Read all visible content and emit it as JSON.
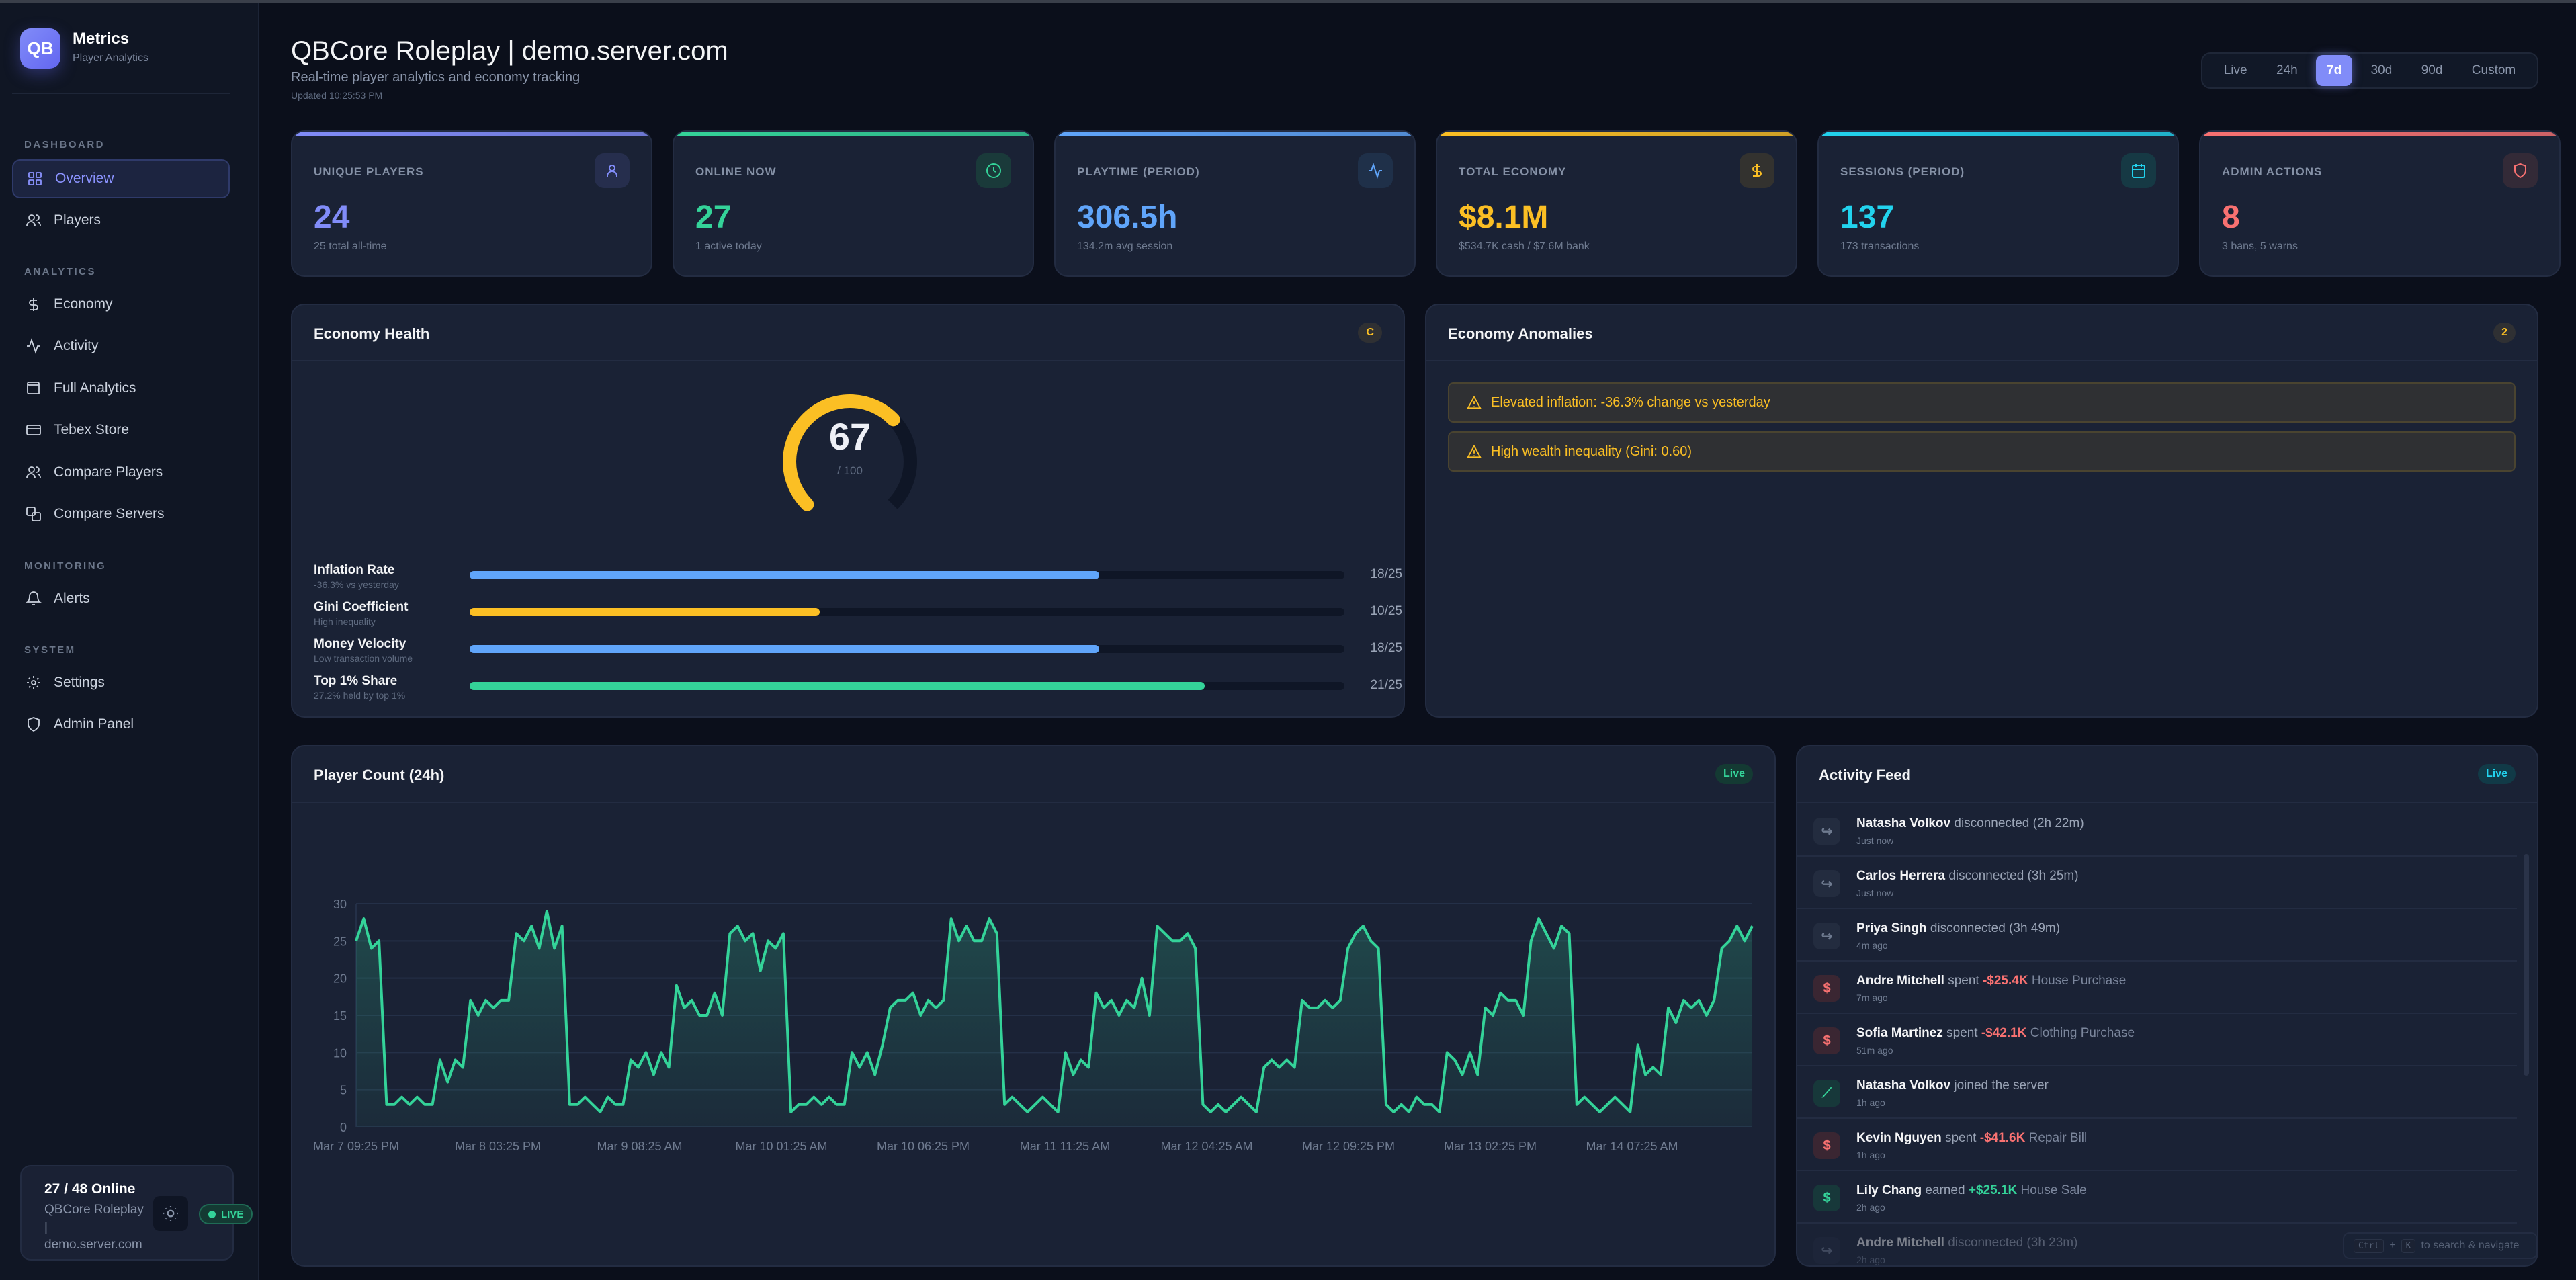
{
  "sidebar": {
    "logo": "QB",
    "brand": "Metrics",
    "brand_sub": "Player Analytics",
    "sections": [
      {
        "label": "DASHBOARD",
        "items": [
          {
            "label": "Overview",
            "icon": "grid-icon",
            "active": true
          },
          {
            "label": "Players",
            "icon": "users-icon"
          }
        ]
      },
      {
        "label": "ANALYTICS",
        "items": [
          {
            "label": "Economy",
            "icon": "dollar-icon"
          },
          {
            "label": "Activity",
            "icon": "activity-icon"
          },
          {
            "label": "Full Analytics",
            "icon": "wallet-icon"
          },
          {
            "label": "Tebex Store",
            "icon": "card-icon"
          },
          {
            "label": "Compare Players",
            "icon": "users-icon"
          },
          {
            "label": "Compare Servers",
            "icon": "servers-icon"
          }
        ]
      },
      {
        "label": "MONITORING",
        "items": [
          {
            "label": "Alerts",
            "icon": "bell-icon"
          }
        ]
      },
      {
        "label": "SYSTEM",
        "items": [
          {
            "label": "Settings",
            "icon": "gear-icon"
          },
          {
            "label": "Admin Panel",
            "icon": "shield-icon"
          }
        ]
      }
    ],
    "status": {
      "online": "27 / 48 Online",
      "server_line1": "QBCore Roleplay",
      "server_sep": "|",
      "server_line2": "demo.server.com",
      "live": "LIVE"
    }
  },
  "header": {
    "title": "QBCore Roleplay | demo.server.com",
    "subtitle": "Real-time player analytics and economy tracking",
    "updated": "Updated 10:25:53 PM",
    "ranges": [
      "Live",
      "24h",
      "7d",
      "30d",
      "90d",
      "Custom"
    ],
    "selected_range": "7d"
  },
  "stats": [
    {
      "label": "UNIQUE PLAYERS",
      "value": "24",
      "sub": "25 total all-time",
      "color": "#818cf8",
      "icon": "user-icon"
    },
    {
      "label": "ONLINE NOW",
      "value": "27",
      "sub": "1 active today",
      "color": "#34d399",
      "icon": "clock-icon"
    },
    {
      "label": "PLAYTIME (PERIOD)",
      "value": "306.5h",
      "sub": "134.2m avg session",
      "color": "#60a5fa",
      "icon": "activity-icon"
    },
    {
      "label": "TOTAL ECONOMY",
      "value": "$8.1M",
      "sub": "$534.7K cash / $7.6M bank",
      "color": "#fbbf24",
      "icon": "dollar-icon"
    },
    {
      "label": "SESSIONS (PERIOD)",
      "value": "137",
      "sub": "173 transactions",
      "color": "#22d3ee",
      "icon": "calendar-icon"
    },
    {
      "label": "ADMIN ACTIONS",
      "value": "8",
      "sub": "3 bans, 5 warns",
      "color": "#f87171",
      "icon": "shield-icon"
    }
  ],
  "economy_health": {
    "title": "Economy Health",
    "grade": "C",
    "score": "67",
    "score_max": "/ 100",
    "score_value": 67,
    "metrics": [
      {
        "name": "Inflation Rate",
        "desc": "-36.3% vs yesterday",
        "score": 18,
        "max": 25,
        "label": "18/25",
        "color": "#60a5fa"
      },
      {
        "name": "Gini Coefficient",
        "desc": "High inequality",
        "score": 10,
        "max": 25,
        "label": "10/25",
        "color": "#fbbf24"
      },
      {
        "name": "Money Velocity",
        "desc": "Low transaction volume",
        "score": 18,
        "max": 25,
        "label": "18/25",
        "color": "#60a5fa"
      },
      {
        "name": "Top 1% Share",
        "desc": "27.2% held by top 1%",
        "score": 21,
        "max": 25,
        "label": "21/25",
        "color": "#34d399"
      }
    ]
  },
  "anomalies": {
    "title": "Economy Anomalies",
    "count": "2",
    "items": [
      "Elevated inflation: -36.3% change vs yesterday",
      "High wealth inequality (Gini: 0.60)"
    ]
  },
  "player_count": {
    "title": "Player Count (24h)",
    "badge": "Live"
  },
  "chart_data": {
    "type": "area",
    "title": "Player Count (24h)",
    "xlabel": "",
    "ylabel": "",
    "ylim": [
      0,
      30
    ],
    "grid": true,
    "color": "#34d399",
    "yticks": [
      0,
      5,
      10,
      15,
      20,
      25,
      30
    ],
    "xticks": [
      "Mar 7 09:25 PM",
      "Mar 8 03:25 PM",
      "Mar 9 08:25 AM",
      "Mar 10 01:25 AM",
      "Mar 10 06:25 PM",
      "Mar 11 11:25 AM",
      "Mar 12 04:25 AM",
      "Mar 12 09:25 PM",
      "Mar 13 02:25 PM",
      "Mar 14 07:25 AM"
    ],
    "values": [
      25,
      28,
      24,
      25,
      3,
      3,
      4,
      3,
      4,
      3,
      3,
      9,
      6,
      9,
      8,
      17,
      15,
      17,
      16,
      17,
      17,
      26,
      25,
      27,
      24,
      29,
      24,
      27,
      3,
      3,
      4,
      3,
      2,
      4,
      3,
      3,
      9,
      8,
      10,
      7,
      10,
      8,
      19,
      16,
      17,
      15,
      15,
      18,
      15,
      26,
      27,
      25,
      26,
      21,
      25,
      24,
      26,
      2,
      3,
      3,
      4,
      3,
      4,
      3,
      3,
      10,
      8,
      10,
      7,
      11,
      16,
      17,
      17,
      18,
      15,
      17,
      16,
      17,
      28,
      25,
      27,
      25,
      25,
      28,
      26,
      3,
      4,
      3,
      2,
      3,
      4,
      3,
      2,
      10,
      7,
      9,
      8,
      18,
      16,
      17,
      15,
      17,
      16,
      20,
      15,
      27,
      26,
      25,
      25,
      26,
      24,
      3,
      2,
      3,
      2,
      3,
      4,
      3,
      2,
      8,
      9,
      8,
      9,
      8,
      17,
      16,
      16,
      17,
      16,
      17,
      24,
      26,
      27,
      25,
      24,
      3,
      2,
      3,
      2,
      4,
      3,
      3,
      2,
      10,
      9,
      7,
      10,
      7,
      16,
      15,
      18,
      17,
      17,
      15,
      25,
      28,
      26,
      24,
      27,
      26,
      3,
      4,
      3,
      2,
      3,
      4,
      3,
      2,
      11,
      7,
      8,
      7,
      16,
      14,
      17,
      16,
      17,
      15,
      17,
      24,
      25,
      27,
      25,
      27
    ]
  },
  "activity_feed": {
    "title": "Activity Feed",
    "badge": "Live",
    "items": [
      {
        "name": "Natasha Volkov",
        "action": "disconnected (2h 22m)",
        "amount": "",
        "detail": "",
        "time": "Just now",
        "kind": "logout"
      },
      {
        "name": "Carlos Herrera",
        "action": "disconnected (3h 25m)",
        "amount": "",
        "detail": "",
        "time": "Just now",
        "kind": "logout"
      },
      {
        "name": "Priya Singh",
        "action": "disconnected (3h 49m)",
        "amount": "",
        "detail": "",
        "time": "4m ago",
        "kind": "logout"
      },
      {
        "name": "Andre Mitchell",
        "action": "spent",
        "amount": "-$25.4K",
        "detail": "House Purchase",
        "time": "7m ago",
        "kind": "spend"
      },
      {
        "name": "Sofia Martinez",
        "action": "spent",
        "amount": "-$42.1K",
        "detail": "Clothing Purchase",
        "time": "51m ago",
        "kind": "spend"
      },
      {
        "name": "Natasha Volkov",
        "action": "joined the server",
        "amount": "",
        "detail": "",
        "time": "1h ago",
        "kind": "join"
      },
      {
        "name": "Kevin Nguyen",
        "action": "spent",
        "amount": "-$41.6K",
        "detail": "Repair Bill",
        "time": "1h ago",
        "kind": "spend"
      },
      {
        "name": "Lily Chang",
        "action": "earned",
        "amount": "+$25.1K",
        "detail": "House Sale",
        "time": "2h ago",
        "kind": "earn"
      },
      {
        "name": "Andre Mitchell",
        "action": "disconnected (3h 23m)",
        "amount": "",
        "detail": "",
        "time": "2h ago",
        "kind": "logout"
      }
    ]
  },
  "shortcut_hint": {
    "key1": "Ctrl",
    "plus": "+",
    "key2": "K",
    "text": "to search & navigate"
  }
}
